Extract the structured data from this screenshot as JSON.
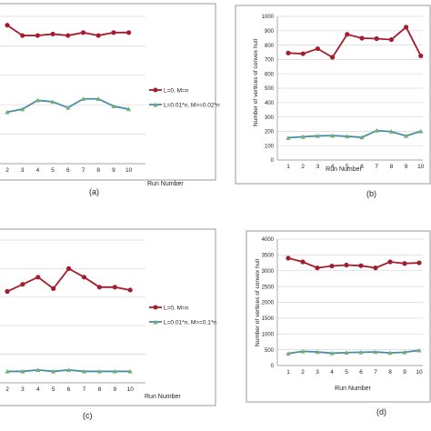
{
  "colors": {
    "series_l0": "#a61c2d",
    "series_small": "#4a8bab",
    "series_small_marker": "#6fb36f",
    "grid": "#d9d9d9",
    "axis": "#888888",
    "frame": "#9a9a9a"
  },
  "chart_data": [
    {
      "id": "a",
      "caption": "(a)",
      "type": "line",
      "xlabel": "Run Number",
      "ylabel": "",
      "categories": [
        "2",
        "3",
        "4",
        "5",
        "6",
        "7",
        "8",
        "9",
        "10"
      ],
      "ylim": [
        0,
        100
      ],
      "yticks": [],
      "legend_position": "right",
      "series": [
        {
          "name": "L=0, M=n",
          "values": [
            94,
            87,
            87,
            88,
            87,
            89,
            87,
            89,
            89
          ]
        },
        {
          "name": "L=0.01*n, M>=0.02*n",
          "values": [
            35,
            37,
            43,
            42,
            38,
            44,
            44,
            39,
            37
          ]
        }
      ]
    },
    {
      "id": "b",
      "caption": "(b)",
      "type": "line",
      "xlabel": "Run Number",
      "ylabel": "Number of vertices of convex hull",
      "categories": [
        "1",
        "2",
        "3",
        "4",
        "5",
        "6",
        "7",
        "8",
        "9",
        "10"
      ],
      "ylim": [
        0,
        1000
      ],
      "yticks": [
        "0",
        "100",
        "200",
        "300",
        "400",
        "500",
        "600",
        "700",
        "800",
        "900",
        "1000"
      ],
      "series": [
        {
          "name": "L=0, M=n",
          "values": [
            745,
            740,
            775,
            715,
            875,
            848,
            845,
            838,
            925,
            725
          ]
        },
        {
          "name": "L=0.01*n, M>=0.02*n",
          "values": [
            155,
            162,
            168,
            170,
            165,
            158,
            205,
            198,
            168,
            200
          ]
        }
      ]
    },
    {
      "id": "c",
      "caption": "(c)",
      "type": "line",
      "xlabel": "Run Number",
      "ylabel": "",
      "categories": [
        "2",
        "3",
        "4",
        "5",
        "6",
        "7",
        "8",
        "9",
        "10"
      ],
      "ylim": [
        0,
        100
      ],
      "yticks": [],
      "legend_position": "right",
      "series": [
        {
          "name": "L=0, M=n",
          "values": [
            64,
            69,
            74,
            66,
            80,
            74,
            67,
            67,
            65
          ]
        },
        {
          "name": "L=0.01*n, M>=0.1*n",
          "values": [
            8,
            8,
            9,
            8,
            9,
            8,
            8,
            8,
            8
          ]
        }
      ]
    },
    {
      "id": "d",
      "caption": "(d)",
      "type": "line",
      "xlabel": "Run Number",
      "ylabel": "Number of vertices of convex hull",
      "categories": [
        "1",
        "2",
        "3",
        "4",
        "5",
        "6",
        "7",
        "8",
        "9",
        "10"
      ],
      "ylim": [
        0,
        4000
      ],
      "yticks": [
        "0",
        "500",
        "1000",
        "1500",
        "2000",
        "2500",
        "3000",
        "3500",
        "4000"
      ],
      "series": [
        {
          "name": "L=0, M=n",
          "values": [
            3400,
            3280,
            3090,
            3150,
            3180,
            3160,
            3090,
            3280,
            3230,
            3250
          ]
        },
        {
          "name": "L=0.01*n, M>=0.1*n",
          "values": [
            380,
            450,
            430,
            390,
            410,
            420,
            430,
            400,
            420,
            480
          ]
        }
      ]
    }
  ]
}
